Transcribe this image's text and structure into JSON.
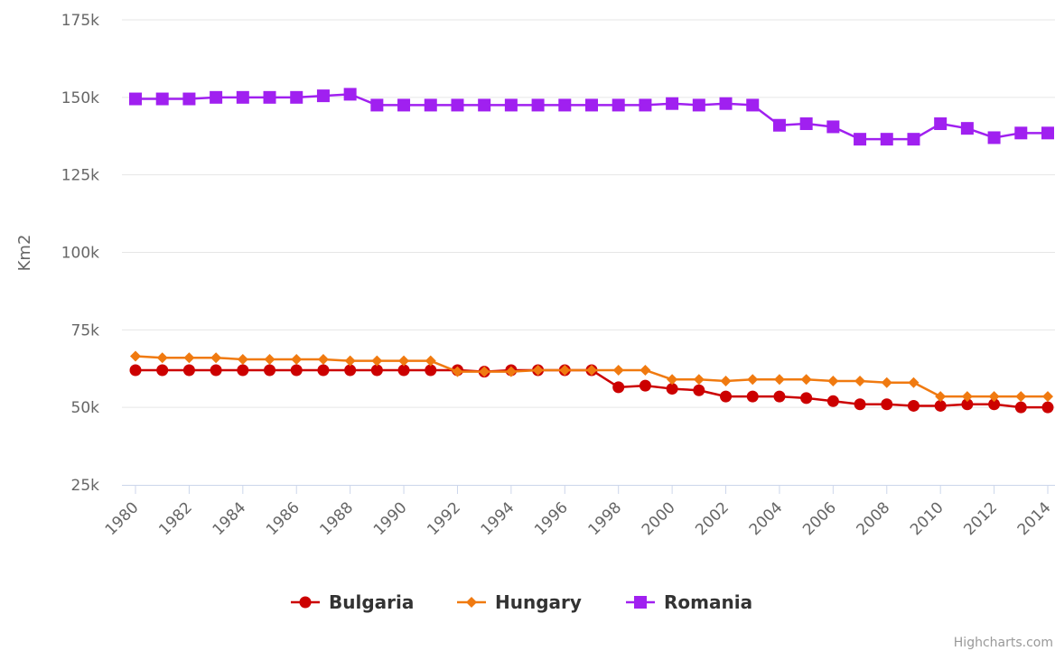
{
  "chart_data": {
    "type": "line",
    "title": "",
    "ylabel": "Km2",
    "xlabel": "",
    "ylim": [
      25000,
      175000
    ],
    "yticks": [
      25000,
      50000,
      75000,
      100000,
      125000,
      150000,
      175000
    ],
    "ytick_labels": [
      "25k",
      "50k",
      "75k",
      "100k",
      "125k",
      "150k",
      "175k"
    ],
    "x": [
      1980,
      1981,
      1982,
      1983,
      1984,
      1985,
      1986,
      1987,
      1988,
      1989,
      1990,
      1991,
      1992,
      1993,
      1994,
      1995,
      1996,
      1997,
      1998,
      1999,
      2000,
      2001,
      2002,
      2003,
      2004,
      2005,
      2006,
      2007,
      2008,
      2009,
      2010,
      2011,
      2012,
      2013,
      2014
    ],
    "xticks": [
      1980,
      1982,
      1984,
      1986,
      1988,
      1990,
      1992,
      1994,
      1996,
      1998,
      2000,
      2002,
      2004,
      2006,
      2008,
      2010,
      2012,
      2014
    ],
    "xtick_labels": [
      "1980",
      "1982",
      "1984",
      "1986",
      "1988",
      "1990",
      "1992",
      "1994",
      "1996",
      "1998",
      "2000",
      "2002",
      "2004",
      "2006",
      "2008",
      "2010",
      "2012",
      "2014"
    ],
    "grid": true,
    "legend_position": "bottom-center",
    "series": [
      {
        "name": "Bulgaria",
        "color": "#cc0000",
        "marker": "circle",
        "values": [
          62000,
          62000,
          62000,
          62000,
          62000,
          62000,
          62000,
          62000,
          62000,
          62000,
          62000,
          62000,
          62000,
          61500,
          62000,
          62000,
          62000,
          62000,
          56500,
          57000,
          56000,
          55500,
          53500,
          53500,
          53500,
          53000,
          52000,
          51000,
          51000,
          50500,
          50500,
          51000,
          51000,
          50000,
          50000
        ]
      },
      {
        "name": "Hungary",
        "color": "#f07a10",
        "marker": "diamond",
        "values": [
          66500,
          66000,
          66000,
          66000,
          65500,
          65500,
          65500,
          65500,
          65000,
          65000,
          65000,
          65000,
          61500,
          61500,
          61500,
          62000,
          62000,
          62000,
          62000,
          62000,
          59000,
          59000,
          58500,
          59000,
          59000,
          59000,
          58500,
          58500,
          58000,
          58000,
          53500,
          53500,
          53500,
          53500,
          53500
        ]
      },
      {
        "name": "Romania",
        "color": "#a020f0",
        "marker": "square",
        "values": [
          149500,
          149500,
          149500,
          150000,
          150000,
          150000,
          150000,
          150500,
          151000,
          147500,
          147500,
          147500,
          147500,
          147500,
          147500,
          147500,
          147500,
          147500,
          147500,
          147500,
          148000,
          147500,
          148000,
          147500,
          141000,
          141500,
          140500,
          136500,
          136500,
          136500,
          141500,
          140000,
          137000,
          138500,
          138500
        ]
      }
    ]
  },
  "credits": "Highcharts.com"
}
